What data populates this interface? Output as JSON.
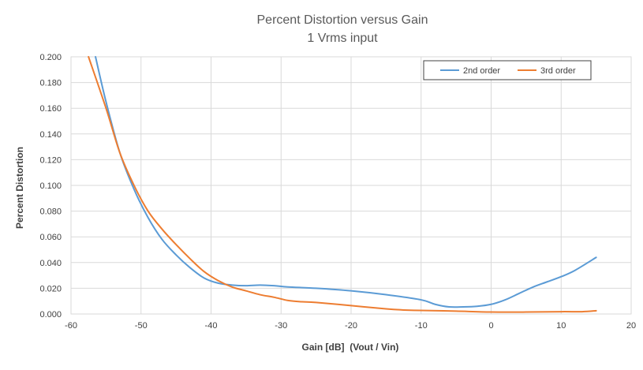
{
  "chart_data": {
    "type": "line",
    "title": "Percent Distortion versus Gain",
    "subtitle": "1 Vrms input",
    "xlabel": "Gain [dB]  (Vout / Vin)",
    "ylabel": "Percent Distortion",
    "xlim": [
      -60,
      20
    ],
    "ylim": [
      0,
      0.2
    ],
    "x_ticks": [
      -60,
      -50,
      -40,
      -30,
      -20,
      -10,
      0,
      10,
      20
    ],
    "y_ticks": [
      0,
      0.02,
      0.04,
      0.06,
      0.08,
      0.1,
      0.12,
      0.14,
      0.16,
      0.18,
      0.2
    ],
    "x_tick_labels": [
      "-60",
      "-50",
      "-40",
      "-30",
      "-20",
      "-10",
      "0",
      "10",
      "20"
    ],
    "y_tick_labels": [
      "0.000",
      "0.020",
      "0.040",
      "0.060",
      "0.080",
      "0.100",
      "0.120",
      "0.140",
      "0.160",
      "0.180",
      "0.200"
    ],
    "grid": true,
    "legend_position": "top-right",
    "series": [
      {
        "name": "2nd order",
        "color": "#5B9BD5",
        "points": [
          [
            -56.5,
            0.2
          ],
          [
            -55,
            0.165
          ],
          [
            -53,
            0.125
          ],
          [
            -51,
            0.097
          ],
          [
            -49,
            0.075
          ],
          [
            -47,
            0.058
          ],
          [
            -45,
            0.046
          ],
          [
            -43,
            0.036
          ],
          [
            -41,
            0.028
          ],
          [
            -39,
            0.024
          ],
          [
            -37,
            0.0225
          ],
          [
            -35,
            0.022
          ],
          [
            -33,
            0.0225
          ],
          [
            -31,
            0.022
          ],
          [
            -29,
            0.021
          ],
          [
            -25,
            0.02
          ],
          [
            -20,
            0.018
          ],
          [
            -15,
            0.015
          ],
          [
            -10,
            0.011
          ],
          [
            -8,
            0.0075
          ],
          [
            -6,
            0.0055
          ],
          [
            -4,
            0.0055
          ],
          [
            -2,
            0.006
          ],
          [
            0,
            0.0075
          ],
          [
            2,
            0.011
          ],
          [
            4,
            0.016
          ],
          [
            6,
            0.021
          ],
          [
            8,
            0.025
          ],
          [
            10,
            0.029
          ],
          [
            12,
            0.034
          ],
          [
            15,
            0.044
          ]
        ]
      },
      {
        "name": "3rd order",
        "color": "#ED7D31",
        "points": [
          [
            -57.5,
            0.2
          ],
          [
            -55,
            0.16
          ],
          [
            -53,
            0.125
          ],
          [
            -51,
            0.1
          ],
          [
            -49,
            0.08
          ],
          [
            -47,
            0.066
          ],
          [
            -45,
            0.054
          ],
          [
            -43,
            0.043
          ],
          [
            -41,
            0.033
          ],
          [
            -39,
            0.026
          ],
          [
            -37,
            0.021
          ],
          [
            -35,
            0.018
          ],
          [
            -33,
            0.015
          ],
          [
            -31,
            0.013
          ],
          [
            -29,
            0.0105
          ],
          [
            -27,
            0.0095
          ],
          [
            -25,
            0.009
          ],
          [
            -20,
            0.0065
          ],
          [
            -15,
            0.004
          ],
          [
            -12,
            0.003
          ],
          [
            -10,
            0.0028
          ],
          [
            -5,
            0.0022
          ],
          [
            0,
            0.0015
          ],
          [
            5,
            0.0015
          ],
          [
            10,
            0.0018
          ],
          [
            13,
            0.0018
          ],
          [
            15,
            0.0025
          ]
        ]
      }
    ]
  }
}
